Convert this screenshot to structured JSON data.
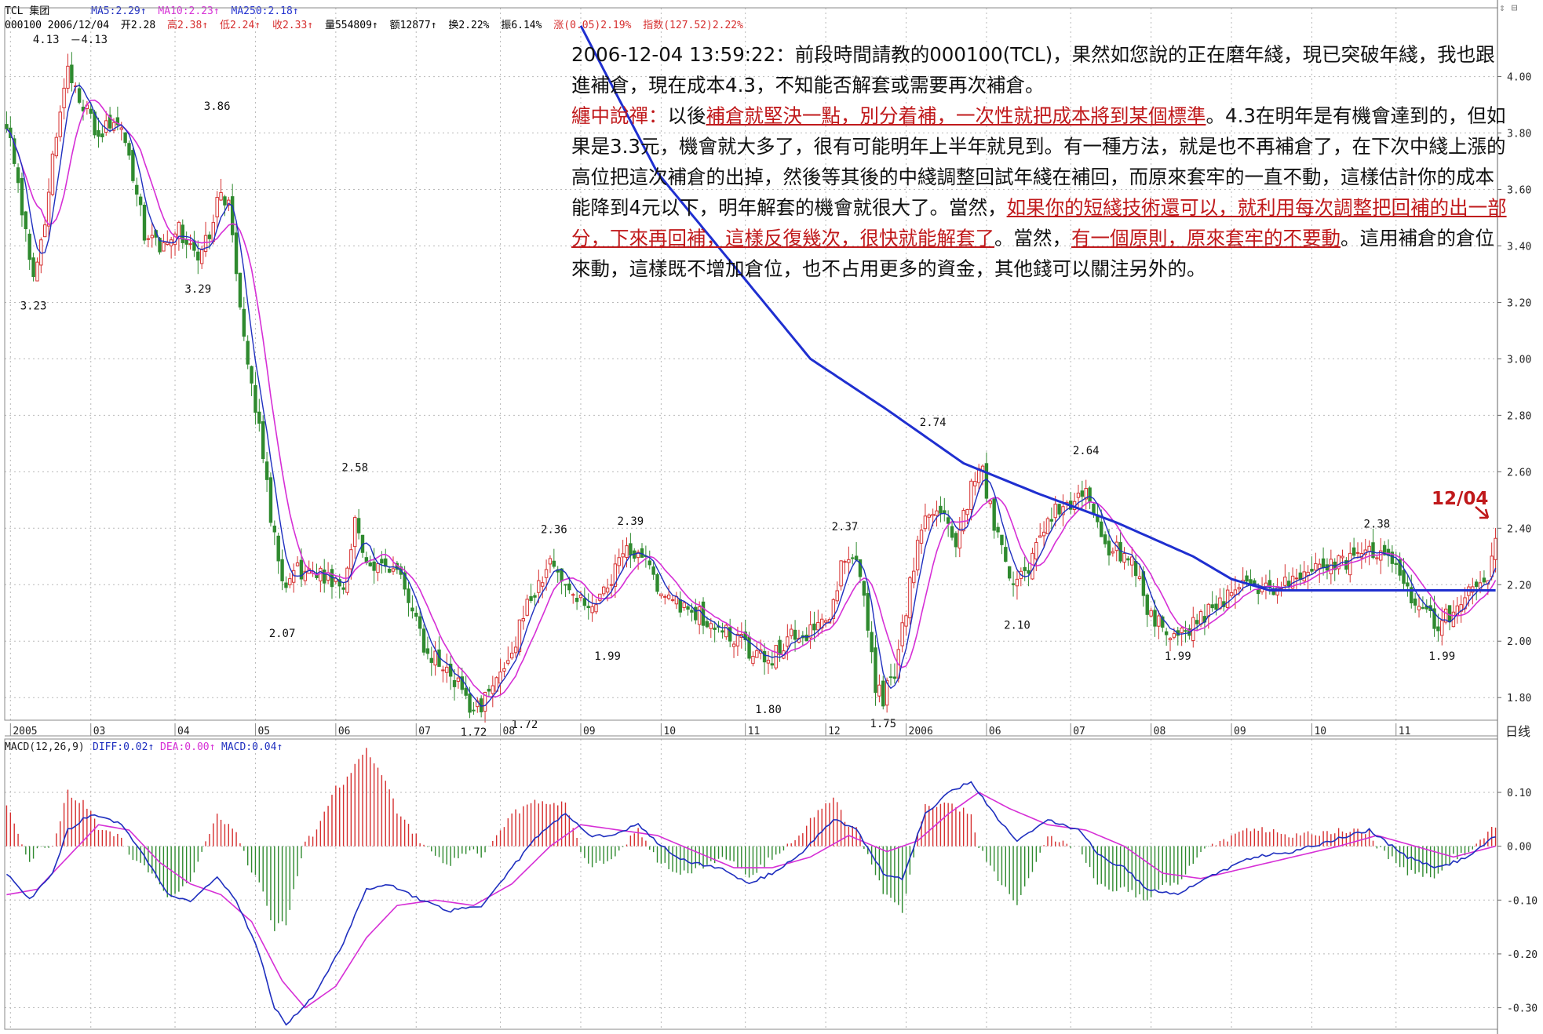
{
  "header": {
    "name": "TCL 集团",
    "ma5": "MA5:2.29↑",
    "ma10": "MA10:2.23↑",
    "ma250": "MA250:2.18↑",
    "code_date": "000100 2006/12/04",
    "open": "开2.28",
    "high": "高2.38↑",
    "low": "低2.24↑",
    "close": "收2.33↑",
    "volume": "量554809↑",
    "amount": "额12877↑",
    "turnover": "换2.22%",
    "amplitude": "振6.14%",
    "change": "涨(0.05)2.19%",
    "index": "指数(127.52)2.22%",
    "top_right_icons": "⇕ ⊟"
  },
  "macd_header": {
    "name": "MACD(12,26,9)",
    "diff": "DIFF:0.02↑",
    "dea": "DEA:0.00↑",
    "macd": "MACD:0.04↑"
  },
  "period_label": "日线",
  "note": {
    "p1": "2006-12-04 13:59:22：前段時間請教的000100(TCL)，果然如您說的正在磨年綫，現已突破年綫，我也跟進補倉，現在成本4.3，不知能否解套或需要再次補倉。",
    "p2_a": "纏中說禪：",
    "p2_b": "以後",
    "p2_c": "補倉就堅決一點，別分着補，一次性就把成本將到某個標準",
    "p2_d": "。4.3在明年是有機會達到的，但如果是3.3元，機會就大多了，很有可能明年上半年就見到。有一種方法，就是也不再補倉了，在下次中綫上漲的高位把這次補倉的出掉，然後等其後的中綫調整回試年綫在補回，而原來套牢的一直不動，這樣估計你的成本能降到4元以下，明年解套的機會就很大了。當然，",
    "p2_e": "如果你的短綫技術還可以，就利用每次調整把回補的出一部分，下來再回補，這樣反復幾次，很快就能解套了",
    "p2_f": "。當然，",
    "p2_g": "有一個原則，原來套牢的不要動",
    "p2_h": "。這用補倉的倉位來動，這樣既不增加倉位，也不占用更多的資金，其他錢可以關注另外的。"
  },
  "annotation_date": "12/04",
  "colors": {
    "up": "#d62f2f",
    "down": "#2f8a2f",
    "ma5": "#1f2fbf",
    "ma10": "#d62fd6",
    "ma250": "#1f2fd0",
    "grid": "#b9b9b9",
    "text_red": "#c0191b"
  },
  "chart_data": {
    "type": "candlestick",
    "y_axis": {
      "range": [
        1.72,
        4.16
      ],
      "ticks": [
        "4.00",
        "3.80",
        "3.60",
        "3.40",
        "3.20",
        "3.00",
        "2.80",
        "2.60",
        "2.40",
        "2.20",
        "2.00",
        "1.80"
      ]
    },
    "x_axis": {
      "labels": [
        "2005",
        "03",
        "04",
        "05",
        "06",
        "07",
        "08",
        "09",
        "10",
        "11",
        "12",
        "2006",
        "06",
        "07",
        "08",
        "09",
        "10",
        "11"
      ]
    },
    "price_labels": [
      {
        "t": "4.13",
        "idx": 15,
        "v": 4.13,
        "pos": "left"
      },
      {
        "t": "4.13",
        "idx": 17,
        "v": 4.13,
        "pos": "right"
      },
      {
        "t": "3.86",
        "idx": 55,
        "v": 3.86,
        "pos": "above"
      },
      {
        "t": "3.23",
        "idx": 7,
        "v": 3.23,
        "pos": "below"
      },
      {
        "t": "3.29",
        "idx": 50,
        "v": 3.29,
        "pos": "below"
      },
      {
        "t": "2.58",
        "idx": 91,
        "v": 2.58,
        "pos": "above"
      },
      {
        "t": "2.07",
        "idx": 72,
        "v": 2.07,
        "pos": "below"
      },
      {
        "t": "2.36",
        "idx": 143,
        "v": 2.36,
        "pos": "above"
      },
      {
        "t": "2.39",
        "idx": 163,
        "v": 2.39,
        "pos": "above"
      },
      {
        "t": "1.99",
        "idx": 157,
        "v": 1.99,
        "pos": "below"
      },
      {
        "t": "1.72",
        "idx": 122,
        "v": 1.72,
        "pos": "below"
      },
      {
        "t": "1.72",
        "idx": 129,
        "v": 1.72,
        "pos": "belowright"
      },
      {
        "t": "1.80",
        "idx": 199,
        "v": 1.8,
        "pos": "below"
      },
      {
        "t": "2.37",
        "idx": 219,
        "v": 2.37,
        "pos": "above"
      },
      {
        "t": "1.75",
        "idx": 229,
        "v": 1.75,
        "pos": "below"
      },
      {
        "t": "2.74",
        "idx": 242,
        "v": 2.74,
        "pos": "above"
      },
      {
        "t": "2.10",
        "idx": 264,
        "v": 2.1,
        "pos": "below"
      },
      {
        "t": "2.64",
        "idx": 282,
        "v": 2.64,
        "pos": "above"
      },
      {
        "t": "1.99",
        "idx": 306,
        "v": 1.99,
        "pos": "below"
      },
      {
        "t": "2.38",
        "idx": 358,
        "v": 2.38,
        "pos": "above"
      },
      {
        "t": "1.99",
        "idx": 375,
        "v": 1.99,
        "pos": "below"
      }
    ],
    "price_waypoints": [
      [
        0,
        3.84
      ],
      [
        3,
        3.62
      ],
      [
        7,
        3.3
      ],
      [
        10,
        3.5
      ],
      [
        14,
        3.9
      ],
      [
        16,
        4.05
      ],
      [
        20,
        3.9
      ],
      [
        24,
        3.8
      ],
      [
        28,
        3.87
      ],
      [
        32,
        3.7
      ],
      [
        36,
        3.45
      ],
      [
        40,
        3.38
      ],
      [
        45,
        3.45
      ],
      [
        50,
        3.35
      ],
      [
        53,
        3.45
      ],
      [
        56,
        3.6
      ],
      [
        58,
        3.55
      ],
      [
        60,
        3.3
      ],
      [
        63,
        3.0
      ],
      [
        66,
        2.75
      ],
      [
        69,
        2.45
      ],
      [
        72,
        2.2
      ],
      [
        76,
        2.26
      ],
      [
        80,
        2.24
      ],
      [
        84,
        2.22
      ],
      [
        88,
        2.2
      ],
      [
        91,
        2.42
      ],
      [
        94,
        2.3
      ],
      [
        98,
        2.26
      ],
      [
        102,
        2.24
      ],
      [
        106,
        2.1
      ],
      [
        110,
        1.96
      ],
      [
        114,
        1.9
      ],
      [
        118,
        1.84
      ],
      [
        122,
        1.75
      ],
      [
        126,
        1.8
      ],
      [
        130,
        1.9
      ],
      [
        134,
        2.05
      ],
      [
        138,
        2.18
      ],
      [
        142,
        2.28
      ],
      [
        146,
        2.22
      ],
      [
        150,
        2.16
      ],
      [
        154,
        2.14
      ],
      [
        158,
        2.22
      ],
      [
        163,
        2.33
      ],
      [
        167,
        2.3
      ],
      [
        171,
        2.18
      ],
      [
        175,
        2.14
      ],
      [
        180,
        2.1
      ],
      [
        185,
        2.05
      ],
      [
        190,
        2.02
      ],
      [
        195,
        1.95
      ],
      [
        199,
        1.92
      ],
      [
        203,
        2.0
      ],
      [
        207,
        2.04
      ],
      [
        211,
        2.02
      ],
      [
        215,
        2.1
      ],
      [
        219,
        2.3
      ],
      [
        223,
        2.25
      ],
      [
        227,
        1.85
      ],
      [
        229,
        1.8
      ],
      [
        232,
        1.9
      ],
      [
        236,
        2.2
      ],
      [
        240,
        2.45
      ],
      [
        244,
        2.48
      ],
      [
        248,
        2.32
      ],
      [
        252,
        2.55
      ],
      [
        255,
        2.6
      ],
      [
        258,
        2.42
      ],
      [
        262,
        2.2
      ],
      [
        266,
        2.25
      ],
      [
        270,
        2.35
      ],
      [
        274,
        2.48
      ],
      [
        278,
        2.5
      ],
      [
        282,
        2.52
      ],
      [
        286,
        2.35
      ],
      [
        290,
        2.32
      ],
      [
        294,
        2.3
      ],
      [
        298,
        2.1
      ],
      [
        302,
        2.05
      ],
      [
        306,
        2.02
      ],
      [
        310,
        2.06
      ],
      [
        315,
        2.12
      ],
      [
        320,
        2.18
      ],
      [
        326,
        2.2
      ],
      [
        332,
        2.18
      ],
      [
        338,
        2.25
      ],
      [
        344,
        2.28
      ],
      [
        350,
        2.27
      ],
      [
        356,
        2.33
      ],
      [
        360,
        2.3
      ],
      [
        365,
        2.2
      ],
      [
        370,
        2.12
      ],
      [
        374,
        2.04
      ],
      [
        378,
        2.12
      ],
      [
        382,
        2.16
      ],
      [
        386,
        2.2
      ],
      [
        389,
        2.33
      ]
    ],
    "candle_count": 390,
    "ma250_waypoints": [
      [
        150,
        4.18
      ],
      [
        170,
        3.66
      ],
      [
        190,
        3.33
      ],
      [
        210,
        3.0
      ],
      [
        230,
        2.82
      ],
      [
        250,
        2.63
      ],
      [
        270,
        2.52
      ],
      [
        290,
        2.42
      ],
      [
        310,
        2.3
      ],
      [
        320,
        2.22
      ],
      [
        330,
        2.18
      ],
      [
        350,
        2.18
      ],
      [
        389,
        2.18
      ]
    ],
    "macd": {
      "range": [
        -0.34,
        0.17
      ],
      "ticks": [
        "0.10",
        "0.00",
        "-0.10",
        "-0.20",
        "-0.30"
      ],
      "diff_waypoints": [
        [
          0,
          -0.05
        ],
        [
          6,
          -0.1
        ],
        [
          12,
          -0.05
        ],
        [
          16,
          0.03
        ],
        [
          22,
          0.06
        ],
        [
          30,
          0.04
        ],
        [
          36,
          -0.02
        ],
        [
          42,
          -0.09
        ],
        [
          48,
          -0.1
        ],
        [
          55,
          -0.06
        ],
        [
          60,
          -0.1
        ],
        [
          66,
          -0.2
        ],
        [
          70,
          -0.3
        ],
        [
          73,
          -0.33
        ],
        [
          80,
          -0.28
        ],
        [
          88,
          -0.18
        ],
        [
          94,
          -0.08
        ],
        [
          100,
          -0.07
        ],
        [
          108,
          -0.1
        ],
        [
          116,
          -0.12
        ],
        [
          124,
          -0.11
        ],
        [
          132,
          -0.04
        ],
        [
          140,
          0.03
        ],
        [
          146,
          0.06
        ],
        [
          152,
          0.02
        ],
        [
          158,
          0.02
        ],
        [
          165,
          0.04
        ],
        [
          171,
          0.0
        ],
        [
          178,
          -0.03
        ],
        [
          186,
          -0.04
        ],
        [
          194,
          -0.07
        ],
        [
          200,
          -0.05
        ],
        [
          208,
          -0.01
        ],
        [
          216,
          0.05
        ],
        [
          222,
          0.03
        ],
        [
          229,
          -0.05
        ],
        [
          234,
          -0.06
        ],
        [
          240,
          0.06
        ],
        [
          246,
          0.1
        ],
        [
          252,
          0.12
        ],
        [
          258,
          0.06
        ],
        [
          264,
          0.01
        ],
        [
          272,
          0.05
        ],
        [
          280,
          0.03
        ],
        [
          286,
          -0.02
        ],
        [
          292,
          -0.04
        ],
        [
          298,
          -0.08
        ],
        [
          306,
          -0.09
        ],
        [
          316,
          -0.05
        ],
        [
          326,
          -0.02
        ],
        [
          336,
          -0.01
        ],
        [
          346,
          0.01
        ],
        [
          356,
          0.03
        ],
        [
          366,
          -0.02
        ],
        [
          374,
          -0.04
        ],
        [
          382,
          -0.02
        ],
        [
          389,
          0.02
        ]
      ],
      "dea_waypoints": [
        [
          0,
          -0.09
        ],
        [
          8,
          -0.08
        ],
        [
          16,
          -0.02
        ],
        [
          24,
          0.04
        ],
        [
          32,
          0.03
        ],
        [
          40,
          -0.03
        ],
        [
          48,
          -0.07
        ],
        [
          56,
          -0.09
        ],
        [
          64,
          -0.14
        ],
        [
          72,
          -0.25
        ],
        [
          78,
          -0.3
        ],
        [
          86,
          -0.26
        ],
        [
          94,
          -0.17
        ],
        [
          102,
          -0.11
        ],
        [
          112,
          -0.1
        ],
        [
          122,
          -0.11
        ],
        [
          132,
          -0.07
        ],
        [
          142,
          0.0
        ],
        [
          150,
          0.04
        ],
        [
          160,
          0.03
        ],
        [
          170,
          0.02
        ],
        [
          180,
          -0.01
        ],
        [
          190,
          -0.04
        ],
        [
          200,
          -0.04
        ],
        [
          210,
          -0.02
        ],
        [
          220,
          0.02
        ],
        [
          230,
          -0.01
        ],
        [
          238,
          0.01
        ],
        [
          246,
          0.06
        ],
        [
          254,
          0.1
        ],
        [
          262,
          0.07
        ],
        [
          272,
          0.04
        ],
        [
          282,
          0.03
        ],
        [
          292,
          0.0
        ],
        [
          302,
          -0.05
        ],
        [
          312,
          -0.06
        ],
        [
          324,
          -0.04
        ],
        [
          336,
          -0.02
        ],
        [
          348,
          0.0
        ],
        [
          358,
          0.02
        ],
        [
          368,
          0.0
        ],
        [
          378,
          -0.02
        ],
        [
          389,
          0.0
        ]
      ]
    }
  }
}
